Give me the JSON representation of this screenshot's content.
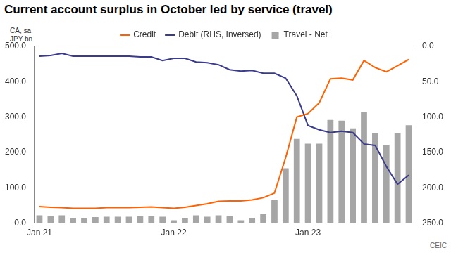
{
  "chart_data": {
    "type": "bar",
    "title": "Current account surplus in October led by service (travel)",
    "ylabel": "CA, sa\nJPY bn",
    "source": "CEIC",
    "categories": [
      "Jan 21",
      null,
      null,
      null,
      null,
      null,
      null,
      null,
      null,
      null,
      null,
      null,
      "Jan 22",
      null,
      null,
      null,
      null,
      null,
      null,
      null,
      null,
      null,
      null,
      null,
      "Jan 23",
      null,
      null,
      null,
      null,
      null,
      null,
      null,
      null,
      null
    ],
    "series": [
      {
        "name": "Travel - Net",
        "type": "bar",
        "color": "#a6a6a6",
        "values": [
          22,
          20,
          22,
          15,
          15,
          17,
          18,
          18,
          18,
          20,
          20,
          18,
          8,
          15,
          22,
          18,
          22,
          20,
          8,
          15,
          25,
          65,
          155,
          238,
          225,
          225,
          292,
          290,
          268,
          313,
          255,
          222,
          255,
          277
        ]
      },
      {
        "name": "Credit",
        "type": "line",
        "color": "#ff6200",
        "values": [
          47,
          45,
          44,
          42,
          42,
          42,
          44,
          44,
          44,
          45,
          46,
          44,
          42,
          45,
          50,
          55,
          62,
          63,
          63,
          66,
          72,
          85,
          185,
          300,
          310,
          340,
          408,
          410,
          405,
          460,
          440,
          428,
          445,
          463
        ]
      },
      {
        "name": "Debit (RHS, Inversed)",
        "type": "line",
        "color": "#3b3b8c",
        "axis": "y2",
        "values": [
          14,
          13,
          10,
          14,
          14,
          14,
          14,
          14,
          14,
          15,
          15,
          20,
          17,
          17,
          22,
          23,
          26,
          33,
          35,
          34,
          38,
          38,
          45,
          70,
          112,
          118,
          122,
          120,
          122,
          138,
          140,
          170,
          195,
          182
        ]
      }
    ],
    "ylim": [
      0,
      500
    ],
    "yticks": [
      {
        "value": 0,
        "label": "0.0"
      },
      {
        "value": 100,
        "label": "100.0"
      },
      {
        "value": 200,
        "label": "200.0"
      },
      {
        "value": 300,
        "label": "300.0"
      },
      {
        "value": 400,
        "label": "400.0"
      },
      {
        "value": 500,
        "label": "500.0"
      }
    ],
    "y2lim": [
      250,
      0
    ],
    "y2ticks": [
      {
        "value": 0,
        "label": "0.0"
      },
      {
        "value": 50,
        "label": "50.0"
      },
      {
        "value": 100,
        "label": "100.0"
      },
      {
        "value": 150,
        "label": "150.0"
      },
      {
        "value": 200,
        "label": "200.0"
      },
      {
        "value": 250,
        "label": "250.0"
      }
    ],
    "grid": false,
    "legend": "top"
  }
}
